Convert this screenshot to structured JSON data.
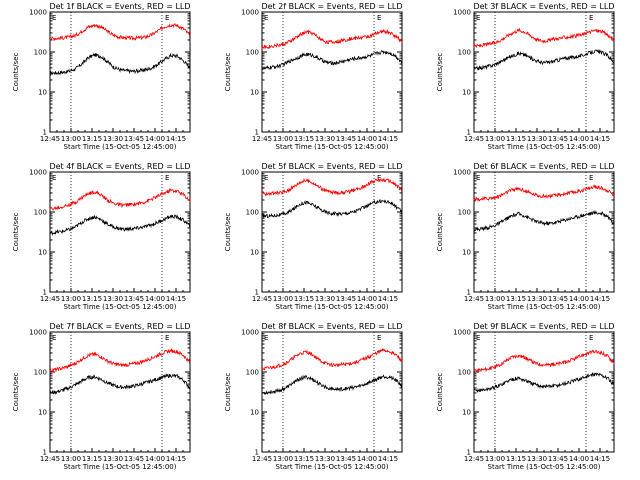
{
  "colors": {
    "events": "#000000",
    "lld": "#ff0000",
    "axes": "#000000",
    "background": "#ffffff"
  },
  "chart_data": [
    {
      "type": "line",
      "title": "Det 1f BLACK = Events, RED = LLD",
      "xlabel": "Start Time (15-Oct-05 12:45:00)",
      "ylabel": "Counts/sec",
      "xticks": [
        "12:45",
        "13:00",
        "13:15",
        "13:30",
        "13:45",
        "14:00",
        "14:15"
      ],
      "yticks": [
        "1",
        "10",
        "100",
        "1000"
      ],
      "ylim": [
        1,
        1000
      ],
      "yscale": "log",
      "xlim_minutes": [
        0,
        100
      ],
      "vlines_minutes": [
        15,
        80
      ],
      "E_markers": [
        "E",
        "E"
      ],
      "series": [
        {
          "values": [
            30,
            30,
            31,
            33,
            38,
            50,
            72,
            85,
            78,
            58,
            42,
            36,
            34,
            33,
            34,
            36,
            40,
            50,
            65,
            82,
            80,
            60,
            40
          ]
        },
        {
          "values": [
            220,
            220,
            225,
            235,
            260,
            330,
            420,
            470,
            430,
            330,
            260,
            235,
            225,
            222,
            225,
            235,
            270,
            340,
            430,
            480,
            460,
            380,
            260
          ]
        }
      ]
    },
    {
      "type": "line",
      "title": "Det 2f BLACK = Events, RED = LLD",
      "xlabel": "Start Time (15-Oct-05 12:45:00)",
      "ylabel": "Counts/sec",
      "xticks": [
        "12:45",
        "13:00",
        "13:15",
        "13:30",
        "13:45",
        "14:00",
        "14:15"
      ],
      "yticks": [
        "1",
        "10",
        "100",
        "1000"
      ],
      "ylim": [
        1,
        1000
      ],
      "yscale": "log",
      "xlim_minutes": [
        0,
        100
      ],
      "vlines_minutes": [
        15,
        80
      ],
      "E_markers": [
        "E",
        "E"
      ],
      "series": [
        {
          "values": [
            38,
            40,
            43,
            46,
            55,
            66,
            77,
            88,
            82,
            68,
            56,
            52,
            55,
            60,
            66,
            70,
            74,
            80,
            92,
            102,
            96,
            80,
            55
          ]
        },
        {
          "values": [
            130,
            135,
            145,
            150,
            170,
            210,
            270,
            320,
            290,
            220,
            180,
            175,
            185,
            200,
            215,
            225,
            235,
            250,
            290,
            330,
            310,
            250,
            180
          ]
        }
      ]
    },
    {
      "type": "line",
      "title": "Det 3f BLACK = Events, RED = LLD",
      "xlabel": "Start Time (15-Oct-05 12:45:00)",
      "ylabel": "Counts/sec",
      "xticks": [
        "12:45",
        "13:00",
        "13:15",
        "13:30",
        "13:45",
        "14:00",
        "14:15"
      ],
      "yticks": [
        "1",
        "10",
        "100",
        "1000"
      ],
      "ylim": [
        1,
        1000
      ],
      "yscale": "log",
      "xlim_minutes": [
        0,
        100
      ],
      "vlines_minutes": [
        15,
        80
      ],
      "E_markers": [
        "E",
        "E"
      ],
      "series": [
        {
          "values": [
            38,
            40,
            43,
            47,
            55,
            68,
            80,
            92,
            85,
            70,
            58,
            54,
            56,
            62,
            68,
            72,
            76,
            82,
            94,
            104,
            98,
            82,
            55
          ]
        },
        {
          "values": [
            140,
            145,
            155,
            165,
            190,
            240,
            300,
            350,
            320,
            250,
            200,
            190,
            200,
            215,
            230,
            240,
            250,
            270,
            310,
            350,
            330,
            270,
            190
          ]
        }
      ]
    },
    {
      "type": "line",
      "title": "Det 4f BLACK = Events, RED = LLD",
      "xlabel": "Start Time (15-Oct-05 12:45:00)",
      "ylabel": "Counts/sec",
      "xticks": [
        "12:45",
        "13:00",
        "13:15",
        "13:30",
        "13:45",
        "14:00",
        "14:15"
      ],
      "yticks": [
        "1",
        "10",
        "100",
        "1000"
      ],
      "ylim": [
        1,
        1000
      ],
      "yscale": "log",
      "xlim_minutes": [
        0,
        100
      ],
      "vlines_minutes": [
        15,
        80
      ],
      "E_markers": [
        "E",
        "E"
      ],
      "series": [
        {
          "values": [
            30,
            31,
            33,
            36,
            42,
            55,
            68,
            75,
            65,
            50,
            42,
            38,
            37,
            38,
            40,
            43,
            48,
            56,
            66,
            78,
            75,
            62,
            45
          ]
        },
        {
          "values": [
            120,
            125,
            135,
            150,
            175,
            230,
            290,
            320,
            270,
            200,
            165,
            150,
            150,
            155,
            165,
            180,
            210,
            250,
            300,
            350,
            330,
            270,
            190
          ]
        }
      ]
    },
    {
      "type": "line",
      "title": "Det 5f BLACK = Events, RED = LLD",
      "xlabel": "Start Time (15-Oct-05 12:45:00)",
      "ylabel": "Counts/sec",
      "xticks": [
        "12:45",
        "13:00",
        "13:15",
        "13:30",
        "13:45",
        "14:00",
        "14:15"
      ],
      "yticks": [
        "1",
        "10",
        "100",
        "1000"
      ],
      "ylim": [
        1,
        1000
      ],
      "yscale": "log",
      "xlim_minutes": [
        0,
        100
      ],
      "vlines_minutes": [
        15,
        80
      ],
      "E_markers": [
        "E",
        "E"
      ],
      "series": [
        {
          "values": [
            80,
            80,
            82,
            85,
            95,
            120,
            160,
            175,
            150,
            120,
            100,
            92,
            90,
            92,
            98,
            110,
            130,
            155,
            180,
            190,
            175,
            140,
            100
          ]
        },
        {
          "values": [
            290,
            290,
            295,
            305,
            340,
            430,
            560,
            620,
            540,
            420,
            340,
            310,
            305,
            310,
            330,
            370,
            440,
            540,
            620,
            640,
            600,
            480,
            340
          ]
        }
      ]
    },
    {
      "type": "line",
      "title": "Det 6f BLACK = Events, RED = LLD",
      "xlabel": "Start Time (15-Oct-05 12:45:00)",
      "ylabel": "Counts/sec",
      "xticks": [
        "12:45",
        "13:00",
        "13:15",
        "13:30",
        "13:45",
        "14:00",
        "14:15"
      ],
      "yticks": [
        "1",
        "10",
        "100",
        "1000"
      ],
      "ylim": [
        1,
        1000
      ],
      "yscale": "log",
      "xlim_minutes": [
        0,
        100
      ],
      "vlines_minutes": [
        15,
        80
      ],
      "E_markers": [
        "E",
        "E"
      ],
      "series": [
        {
          "values": [
            36,
            38,
            40,
            44,
            52,
            66,
            80,
            90,
            80,
            66,
            56,
            52,
            52,
            56,
            62,
            68,
            74,
            82,
            90,
            96,
            92,
            80,
            52
          ]
        },
        {
          "values": [
            210,
            210,
            215,
            225,
            250,
            300,
            360,
            380,
            340,
            290,
            260,
            250,
            252,
            262,
            280,
            300,
            320,
            350,
            390,
            420,
            400,
            350,
            260
          ]
        }
      ]
    },
    {
      "type": "line",
      "title": "Det 7f BLACK = Events, RED = LLD",
      "xlabel": "Start Time (15-Oct-05 12:45:00)",
      "ylabel": "Counts/sec",
      "xticks": [
        "12:45",
        "13:00",
        "13:15",
        "13:30",
        "13:45",
        "14:00",
        "14:15"
      ],
      "yticks": [
        "1",
        "10",
        "100",
        "1000"
      ],
      "ylim": [
        1,
        1000
      ],
      "yscale": "log",
      "xlim_minutes": [
        0,
        100
      ],
      "vlines_minutes": [
        15,
        80
      ],
      "E_markers": [
        "E",
        "E"
      ],
      "series": [
        {
          "values": [
            30,
            32,
            35,
            40,
            48,
            60,
            72,
            76,
            66,
            54,
            46,
            42,
            42,
            44,
            48,
            54,
            60,
            68,
            76,
            82,
            78,
            62,
            40
          ]
        },
        {
          "values": [
            110,
            115,
            125,
            140,
            165,
            210,
            260,
            280,
            240,
            190,
            160,
            150,
            150,
            158,
            172,
            195,
            225,
            265,
            310,
            340,
            320,
            260,
            170
          ]
        }
      ]
    },
    {
      "type": "line",
      "title": "Det 8f BLACK = Events, RED = LLD",
      "xlabel": "Start Time (15-Oct-05 12:45:00)",
      "ylabel": "Counts/sec",
      "xticks": [
        "12:45",
        "13:00",
        "13:15",
        "13:30",
        "13:45",
        "14:00",
        "14:15"
      ],
      "yticks": [
        "1",
        "10",
        "100",
        "1000"
      ],
      "ylim": [
        1,
        1000
      ],
      "yscale": "log",
      "xlim_minutes": [
        0,
        100
      ],
      "vlines_minutes": [
        15,
        80
      ],
      "E_markers": [
        "E",
        "E"
      ],
      "series": [
        {
          "values": [
            30,
            31,
            33,
            36,
            42,
            55,
            68,
            75,
            65,
            50,
            42,
            38,
            37,
            38,
            40,
            43,
            48,
            56,
            66,
            78,
            75,
            62,
            45
          ]
        },
        {
          "values": [
            120,
            125,
            135,
            150,
            175,
            230,
            290,
            320,
            270,
            200,
            165,
            150,
            150,
            155,
            165,
            180,
            210,
            250,
            300,
            350,
            330,
            270,
            190
          ]
        }
      ]
    },
    {
      "type": "line",
      "title": "Det 9f BLACK = Events, RED = LLD",
      "xlabel": "Start Time (15-Oct-05 12:45:00)",
      "ylabel": "Counts/sec",
      "xticks": [
        "12:45",
        "13:00",
        "13:15",
        "13:30",
        "13:45",
        "14:00",
        "14:15"
      ],
      "yticks": [
        "1",
        "10",
        "100",
        "1000"
      ],
      "ylim": [
        1,
        1000
      ],
      "yscale": "log",
      "xlim_minutes": [
        0,
        100
      ],
      "vlines_minutes": [
        15,
        80
      ],
      "E_markers": [
        "E",
        "E"
      ],
      "series": [
        {
          "values": [
            34,
            35,
            37,
            40,
            46,
            56,
            66,
            70,
            62,
            52,
            46,
            44,
            44,
            46,
            50,
            55,
            62,
            70,
            80,
            88,
            84,
            70,
            48
          ]
        },
        {
          "values": [
            110,
            112,
            118,
            128,
            150,
            190,
            240,
            260,
            230,
            185,
            160,
            152,
            152,
            158,
            170,
            190,
            220,
            260,
            300,
            320,
            300,
            250,
            170
          ]
        }
      ]
    }
  ]
}
